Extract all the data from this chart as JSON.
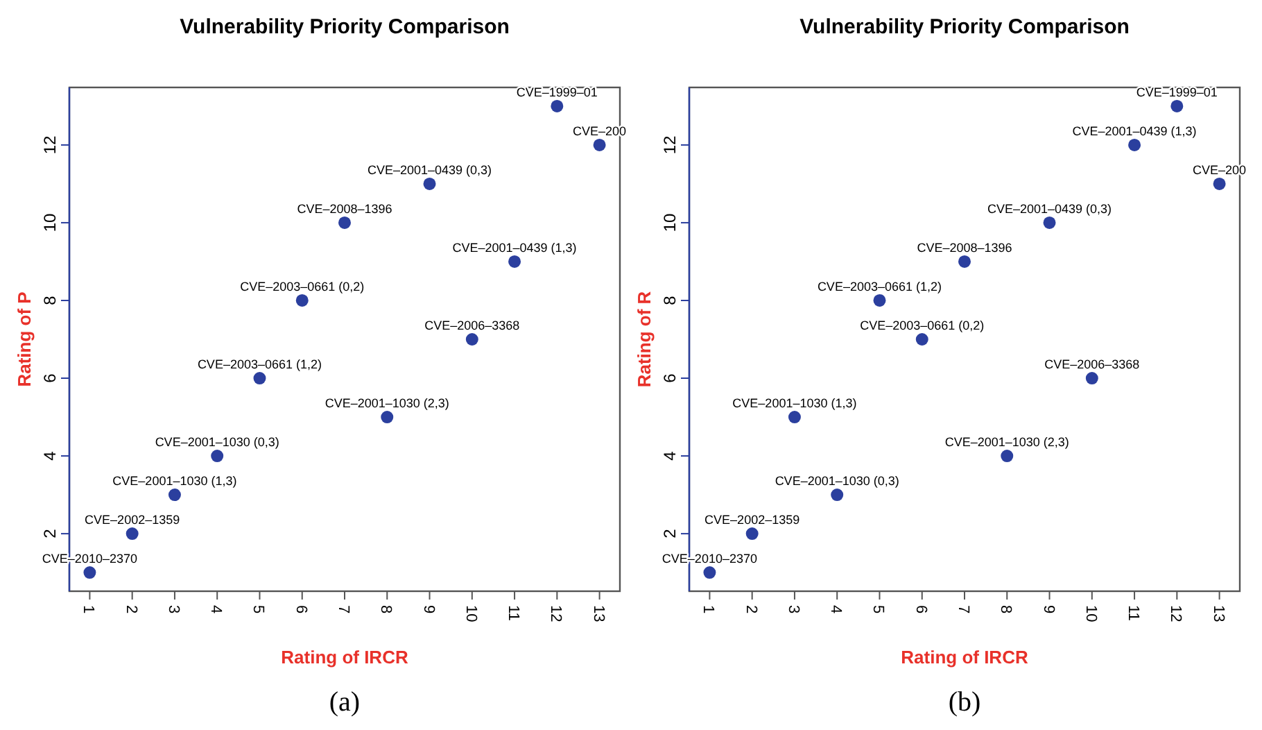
{
  "chart_data": [
    {
      "type": "scatter",
      "title": "Vulnerability Priority Comparison",
      "xlabel": "Rating of IRCR",
      "ylabel": "Rating of P",
      "x": [
        1,
        2,
        3,
        4,
        5,
        6,
        7,
        8,
        9,
        10,
        11,
        12,
        13
      ],
      "series": [
        {
          "color": "#2b3f9e",
          "values": [
            1,
            2,
            3,
            4,
            6,
            8,
            10,
            5,
            11,
            7,
            9,
            13,
            12
          ]
        }
      ],
      "xlim": [
        0.52,
        13.48
      ],
      "ylim": [
        0.52,
        13.48
      ],
      "xticks": [
        1,
        2,
        3,
        4,
        5,
        6,
        7,
        8,
        9,
        10,
        11,
        12,
        13
      ],
      "yticks": [
        2,
        4,
        6,
        8,
        10,
        12
      ],
      "grid": false,
      "marker": "circle",
      "annotations": [
        {
          "text": "CVE–2010–2370",
          "x": 1,
          "y": 1
        },
        {
          "text": "CVE–2002–1359",
          "x": 2,
          "y": 2
        },
        {
          "text": "CVE–2001–1030 (1,3)",
          "x": 3,
          "y": 3
        },
        {
          "text": "CVE–2001–1030 (0,3)",
          "x": 4,
          "y": 4
        },
        {
          "text": "CVE–2003–0661 (1,2)",
          "x": 5,
          "y": 6
        },
        {
          "text": "CVE–2003–0661 (0,2)",
          "x": 6,
          "y": 8
        },
        {
          "text": "CVE–2008–1396",
          "x": 7,
          "y": 10
        },
        {
          "text": "CVE–2001–1030 (2,3)",
          "x": 8,
          "y": 5
        },
        {
          "text": "CVE–2001–0439 (0,3)",
          "x": 9,
          "y": 11
        },
        {
          "text": "CVE–2006–3368",
          "x": 10,
          "y": 7
        },
        {
          "text": "CVE–2001–0439 (1,3)",
          "x": 11,
          "y": 9
        },
        {
          "text": "CVE–1999–01",
          "x": 12,
          "y": 13
        },
        {
          "text": "CVE–200",
          "x": 13,
          "y": 12
        },
        "(a)"
      ]
    },
    {
      "type": "scatter",
      "title": "Vulnerability Priority Comparison",
      "xlabel": "Rating of IRCR",
      "ylabel": "Rating of R",
      "x": [
        1,
        2,
        3,
        4,
        5,
        6,
        7,
        8,
        9,
        10,
        11,
        12,
        13
      ],
      "series": [
        {
          "color": "#2b3f9e",
          "values": [
            1,
            2,
            5,
            3,
            8,
            7,
            9,
            4,
            10,
            6,
            12,
            13,
            11
          ]
        }
      ],
      "xlim": [
        0.52,
        13.48
      ],
      "ylim": [
        0.52,
        13.48
      ],
      "xticks": [
        1,
        2,
        3,
        4,
        5,
        6,
        7,
        8,
        9,
        10,
        11,
        12,
        13
      ],
      "yticks": [
        2,
        4,
        6,
        8,
        10,
        12
      ],
      "grid": false,
      "marker": "circle",
      "annotations": [
        {
          "text": "CVE–2010–2370",
          "x": 1,
          "y": 1
        },
        {
          "text": "CVE–2002–1359",
          "x": 2,
          "y": 2
        },
        {
          "text": "CVE–2001–1030 (1,3)",
          "x": 3,
          "y": 5
        },
        {
          "text": "CVE–2001–1030 (0,3)",
          "x": 4,
          "y": 3
        },
        {
          "text": "CVE–2003–0661 (1,2)",
          "x": 5,
          "y": 8
        },
        {
          "text": "CVE–2003–0661 (0,2)",
          "x": 6,
          "y": 7
        },
        {
          "text": "CVE–2008–1396",
          "x": 7,
          "y": 9
        },
        {
          "text": "CVE–2001–1030 (2,3)",
          "x": 8,
          "y": 4
        },
        {
          "text": "CVE–2001–0439 (0,3)",
          "x": 9,
          "y": 10
        },
        {
          "text": "CVE–2006–3368",
          "x": 10,
          "y": 6
        },
        {
          "text": "CVE–2001–0439 (1,3)",
          "x": 11,
          "y": 12
        },
        {
          "text": "CVE–1999–01",
          "x": 12,
          "y": 13
        },
        {
          "text": "CVE–200",
          "x": 13,
          "y": 11
        },
        "(b)"
      ]
    }
  ]
}
